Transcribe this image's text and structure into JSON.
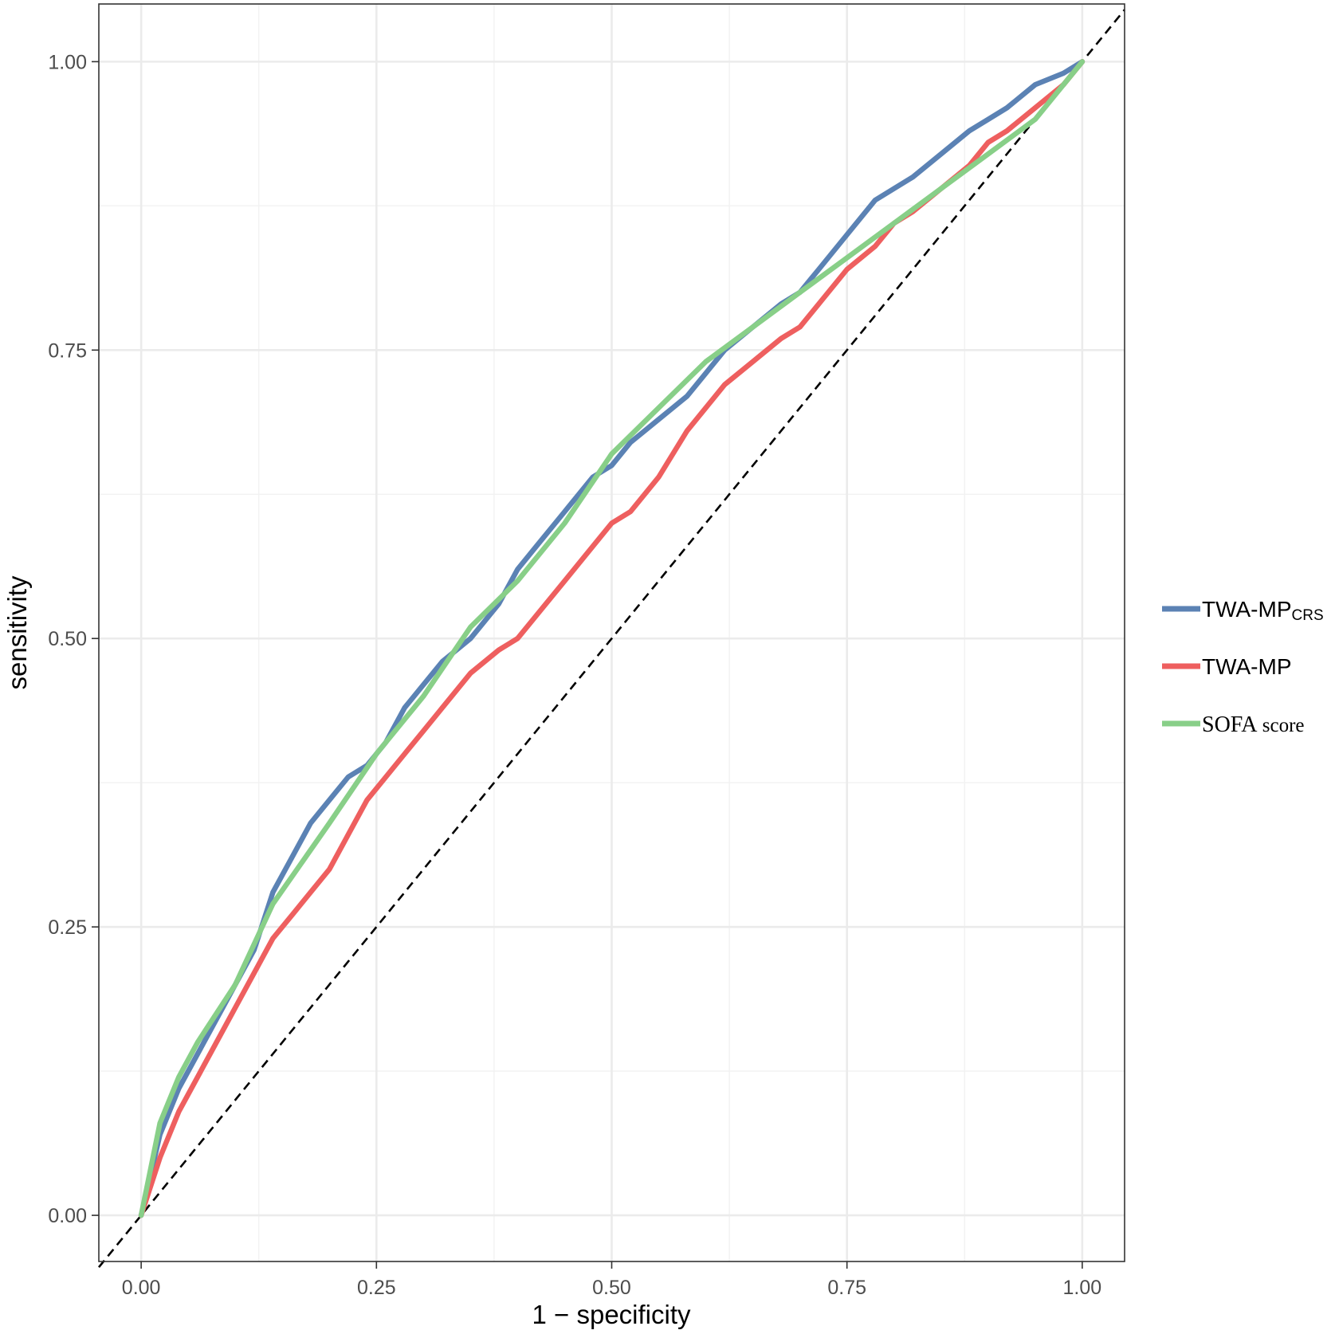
{
  "chart_data": {
    "type": "line",
    "title": "",
    "xlabel": "1 − specificity",
    "ylabel": "sensitivity",
    "xlim": [
      -0.045,
      1.045
    ],
    "ylim": [
      -0.04,
      1.05
    ],
    "xticks": [
      0.0,
      0.25,
      0.5,
      0.75,
      1.0
    ],
    "yticks": [
      0.0,
      0.25,
      0.5,
      0.75,
      1.0
    ],
    "xtick_labels": [
      "0.00",
      "0.25",
      "0.50",
      "0.75",
      "1.00"
    ],
    "ytick_labels": [
      "0.00",
      "0.25",
      "0.50",
      "0.75",
      "1.00"
    ],
    "grid": true,
    "legend_position": "right",
    "reference_line": {
      "style": "dashed",
      "color": "#000000",
      "x": [
        -0.045,
        1.045
      ],
      "y": [
        -0.045,
        1.045
      ]
    },
    "series": [
      {
        "name": "TWA-MP",
        "name_subscript": "CRS",
        "legend_style": "sans",
        "color": "#5b82b4",
        "x": [
          0.0,
          0.02,
          0.04,
          0.06,
          0.08,
          0.1,
          0.12,
          0.14,
          0.16,
          0.18,
          0.2,
          0.22,
          0.24,
          0.26,
          0.28,
          0.3,
          0.32,
          0.35,
          0.38,
          0.4,
          0.42,
          0.45,
          0.48,
          0.5,
          0.52,
          0.55,
          0.58,
          0.6,
          0.62,
          0.65,
          0.68,
          0.7,
          0.72,
          0.75,
          0.78,
          0.8,
          0.82,
          0.85,
          0.88,
          0.9,
          0.92,
          0.95,
          0.98,
          1.0
        ],
        "y": [
          0.0,
          0.07,
          0.11,
          0.14,
          0.17,
          0.2,
          0.23,
          0.28,
          0.31,
          0.34,
          0.36,
          0.38,
          0.39,
          0.41,
          0.44,
          0.46,
          0.48,
          0.5,
          0.53,
          0.56,
          0.58,
          0.61,
          0.64,
          0.65,
          0.67,
          0.69,
          0.71,
          0.73,
          0.75,
          0.77,
          0.79,
          0.8,
          0.82,
          0.85,
          0.88,
          0.89,
          0.9,
          0.92,
          0.94,
          0.95,
          0.96,
          0.98,
          0.99,
          1.0
        ]
      },
      {
        "name": "TWA-MP",
        "name_subscript": "",
        "legend_style": "sans",
        "color": "#ee5f5f",
        "x": [
          0.0,
          0.02,
          0.04,
          0.06,
          0.08,
          0.1,
          0.12,
          0.14,
          0.16,
          0.18,
          0.2,
          0.22,
          0.24,
          0.26,
          0.28,
          0.3,
          0.32,
          0.35,
          0.38,
          0.4,
          0.42,
          0.45,
          0.48,
          0.5,
          0.52,
          0.55,
          0.58,
          0.6,
          0.62,
          0.65,
          0.68,
          0.7,
          0.72,
          0.75,
          0.78,
          0.8,
          0.82,
          0.85,
          0.88,
          0.9,
          0.92,
          0.95,
          0.98,
          1.0
        ],
        "y": [
          0.0,
          0.05,
          0.09,
          0.12,
          0.15,
          0.18,
          0.21,
          0.24,
          0.26,
          0.28,
          0.3,
          0.33,
          0.36,
          0.38,
          0.4,
          0.42,
          0.44,
          0.47,
          0.49,
          0.5,
          0.52,
          0.55,
          0.58,
          0.6,
          0.61,
          0.64,
          0.68,
          0.7,
          0.72,
          0.74,
          0.76,
          0.77,
          0.79,
          0.82,
          0.84,
          0.86,
          0.87,
          0.89,
          0.91,
          0.93,
          0.94,
          0.96,
          0.98,
          1.0
        ]
      },
      {
        "name": "SOFA",
        "name_suffix": "score",
        "legend_style": "serif",
        "color": "#88cf88",
        "x": [
          0.0,
          0.02,
          0.04,
          0.06,
          0.1,
          0.14,
          0.2,
          0.25,
          0.3,
          0.35,
          0.4,
          0.45,
          0.5,
          0.55,
          0.6,
          0.65,
          0.7,
          0.75,
          0.8,
          0.85,
          0.9,
          0.95,
          1.0
        ],
        "y": [
          0.0,
          0.08,
          0.12,
          0.15,
          0.2,
          0.27,
          0.34,
          0.4,
          0.45,
          0.51,
          0.55,
          0.6,
          0.66,
          0.7,
          0.74,
          0.77,
          0.8,
          0.83,
          0.86,
          0.89,
          0.92,
          0.95,
          1.0
        ]
      }
    ]
  }
}
